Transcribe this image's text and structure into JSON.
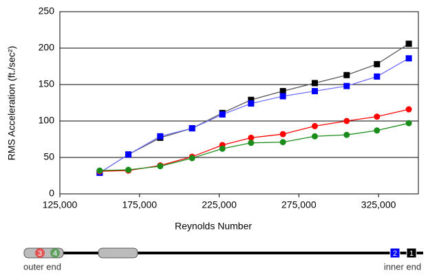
{
  "chart_data": {
    "type": "line",
    "x_label": "Reynolds Number",
    "y_label": "RMS Acceleration (ft./sec²)",
    "x": [
      150000,
      168000,
      188000,
      208000,
      227000,
      245000,
      265000,
      285000,
      305000,
      324000,
      344000
    ],
    "series": [
      {
        "name": "1",
        "color": "#000000",
        "line_color": "#555555",
        "marker": "square",
        "values": [
          29,
          54,
          77,
          90,
          111,
          129,
          141,
          152,
          163,
          178,
          206
        ]
      },
      {
        "name": "2",
        "color": "#0000ff",
        "line_color": "#6f6fff",
        "marker": "square",
        "values": [
          29,
          54,
          79,
          90,
          109,
          124,
          134,
          141,
          148,
          161,
          186
        ]
      },
      {
        "name": "3",
        "color": "#ff0000",
        "line_color": "#ff0000",
        "marker": "circle",
        "values": [
          31,
          32,
          39,
          51,
          67,
          77,
          82,
          93,
          100,
          106,
          116
        ]
      },
      {
        "name": "4",
        "color": "#1a8c1a",
        "line_color": "#1a8c1a",
        "marker": "circle",
        "values": [
          32,
          33,
          38,
          49,
          62,
          70,
          71,
          79,
          81,
          87,
          97
        ]
      }
    ],
    "xlim": [
      125000,
      350000
    ],
    "xticks": [
      {
        "value": 125000,
        "label": "125,000"
      },
      {
        "value": 175000,
        "label": "175,000"
      },
      {
        "value": 225000,
        "label": "225,000"
      },
      {
        "value": 275000,
        "label": "275,000"
      },
      {
        "value": 325000,
        "label": "325,000"
      }
    ],
    "ylim": [
      0,
      250
    ],
    "yticks": [
      0,
      50,
      100,
      150,
      200,
      250
    ],
    "grid": true
  },
  "diagram": {
    "outer_label": "outer end",
    "inner_label": "inner end"
  }
}
